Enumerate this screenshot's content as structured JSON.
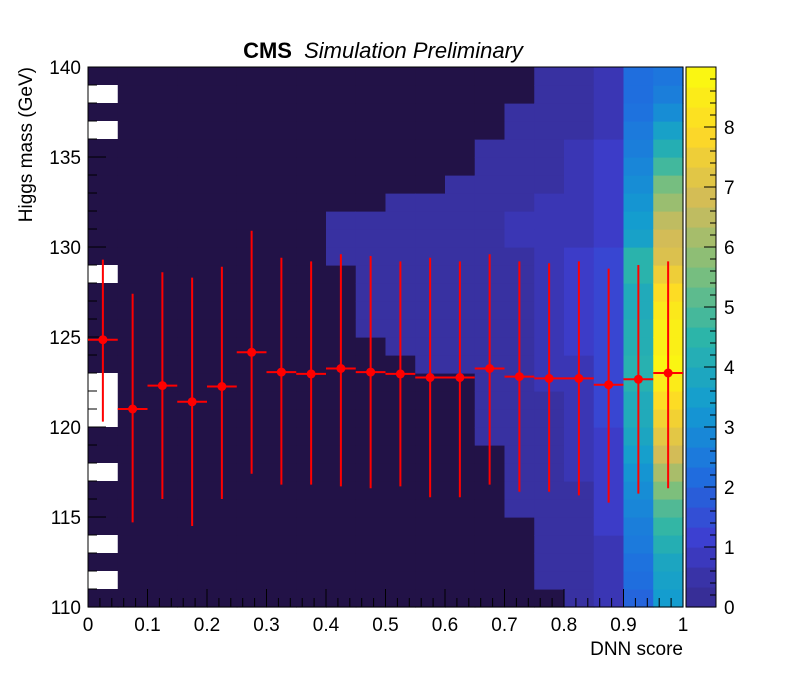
{
  "chart_data": {
    "type": "heatmap",
    "title_bold": "CMS",
    "title_italic": "Simulation Preliminary",
    "xlabel": "DNN score",
    "ylabel": "Higgs mass (GeV)",
    "xlim": [
      0,
      1
    ],
    "ylim": [
      110,
      140
    ],
    "x_ticks": [
      "0",
      "0.1",
      "0.2",
      "0.3",
      "0.4",
      "0.5",
      "0.6",
      "0.7",
      "0.8",
      "0.9",
      "1"
    ],
    "y_ticks": [
      "110",
      "115",
      "120",
      "125",
      "130",
      "135",
      "140"
    ],
    "colorbar": {
      "min": 0,
      "max": 9,
      "ticks": [
        "0",
        "1",
        "2",
        "3",
        "4",
        "5",
        "6",
        "7",
        "8"
      ]
    },
    "x_bins": 20,
    "y_bins": 30,
    "grid": false,
    "legend": "none",
    "column_profiles": [
      [
        0.1,
        0.1,
        0.1,
        0.1,
        0.1,
        0.1,
        0.1,
        0.1,
        0.1,
        0.1,
        0.1,
        0.1,
        0.1,
        0.1,
        0.1,
        0.1,
        0.1,
        0.1,
        0.1,
        0.1,
        0.1,
        0.1,
        0.1,
        0.1,
        0.1,
        0.1,
        0.1,
        0.1,
        0.1,
        0.1
      ],
      [
        0.1,
        0.1,
        0.1,
        0.1,
        0.1,
        0.1,
        0.1,
        0.1,
        0.1,
        0.1,
        0.1,
        0.1,
        0.1,
        0.1,
        0.1,
        0.1,
        0.1,
        0.1,
        0.1,
        0.1,
        0.1,
        0.1,
        0.1,
        0.1,
        0.1,
        0.1,
        0.1,
        0.1,
        0.1,
        0.1
      ],
      [
        0.1,
        0.1,
        0.1,
        0.1,
        0.1,
        0.1,
        0.1,
        0.1,
        0.1,
        0.1,
        0.1,
        0.1,
        0.1,
        0.1,
        0.1,
        0.1,
        0.1,
        0.1,
        0.1,
        0.1,
        0.1,
        0.1,
        0.1,
        0.1,
        0.1,
        0.1,
        0.1,
        0.1,
        0.1,
        0.1
      ],
      [
        0.1,
        0.1,
        0.1,
        0.1,
        0.1,
        0.1,
        0.1,
        0.1,
        0.1,
        0.1,
        0.1,
        0.1,
        0.1,
        0.1,
        0.1,
        0.1,
        0.1,
        0.1,
        0.1,
        0.1,
        0.1,
        0.1,
        0.1,
        0.1,
        0.1,
        0.1,
        0.1,
        0.1,
        0.1,
        0.1
      ],
      [
        0.1,
        0.1,
        0.1,
        0.1,
        0.1,
        0.1,
        0.1,
        0.1,
        0.1,
        0.1,
        0.1,
        0.1,
        0.1,
        0.1,
        0.1,
        0.1,
        0.1,
        0.1,
        0.1,
        0.1,
        0.1,
        0.1,
        0.1,
        0.1,
        0.1,
        0.1,
        0.1,
        0.1,
        0.1,
        0.1
      ],
      [
        0.1,
        0.1,
        0.1,
        0.1,
        0.1,
        0.1,
        0.1,
        0.1,
        0.1,
        0.1,
        0.1,
        0.1,
        0.1,
        0.1,
        0.1,
        0.1,
        0.1,
        0.1,
        0.1,
        0.1,
        0.1,
        0.1,
        0.1,
        0.1,
        0.1,
        0.1,
        0.1,
        0.1,
        0.1,
        0.1
      ],
      [
        0.1,
        0.1,
        0.1,
        0.1,
        0.1,
        0.1,
        0.1,
        0.1,
        0.1,
        0.1,
        0.1,
        0.1,
        0.1,
        0.1,
        0.1,
        0.1,
        0.1,
        0.1,
        0.1,
        0.1,
        0.1,
        0.1,
        0.1,
        0.1,
        0.1,
        0.1,
        0.1,
        0.1,
        0.1,
        0.1
      ],
      [
        0.1,
        0.1,
        0.1,
        0.1,
        0.1,
        0.1,
        0.1,
        0.1,
        0.1,
        0.1,
        0.1,
        0.1,
        0.1,
        0.1,
        0.1,
        0.1,
        0.1,
        0.1,
        0.1,
        0.1,
        0.1,
        0.1,
        0.1,
        0.1,
        0.1,
        0.1,
        0.1,
        0.1,
        0.1,
        0.1
      ],
      [
        0.1,
        0.1,
        0.1,
        0.1,
        0.1,
        0.1,
        0.1,
        0.1,
        0.1,
        0.1,
        0.1,
        0.1,
        0.1,
        0.1,
        0.1,
        0.1,
        0.1,
        0.1,
        0.1,
        0.4,
        0.4,
        0.4,
        0.1,
        0.1,
        0.1,
        0.1,
        0.1,
        0.1,
        0.1,
        0.1
      ],
      [
        0.1,
        0.1,
        0.1,
        0.1,
        0.1,
        0.1,
        0.1,
        0.1,
        0.1,
        0.1,
        0.1,
        0.1,
        0.1,
        0.1,
        0.1,
        0.4,
        0.4,
        0.4,
        0.4,
        0.4,
        0.4,
        0.4,
        0.1,
        0.1,
        0.1,
        0.1,
        0.1,
        0.1,
        0.1,
        0.1
      ],
      [
        0.1,
        0.1,
        0.1,
        0.1,
        0.1,
        0.1,
        0.1,
        0.1,
        0.1,
        0.1,
        0.1,
        0.1,
        0.1,
        0.1,
        0.4,
        0.4,
        0.4,
        0.4,
        0.4,
        0.4,
        0.4,
        0.4,
        0.4,
        0.1,
        0.1,
        0.1,
        0.1,
        0.1,
        0.1,
        0.1
      ],
      [
        0.1,
        0.1,
        0.1,
        0.1,
        0.1,
        0.1,
        0.1,
        0.1,
        0.1,
        0.1,
        0.1,
        0.1,
        0.1,
        0.4,
        0.4,
        0.4,
        0.4,
        0.4,
        0.4,
        0.4,
        0.4,
        0.4,
        0.4,
        0.1,
        0.1,
        0.1,
        0.1,
        0.1,
        0.1,
        0.1
      ],
      [
        0.1,
        0.1,
        0.1,
        0.1,
        0.1,
        0.1,
        0.1,
        0.1,
        0.1,
        0.1,
        0.1,
        0.1,
        0.1,
        0.4,
        0.4,
        0.4,
        0.4,
        0.4,
        0.4,
        0.4,
        0.4,
        0.4,
        0.4,
        0.4,
        0.1,
        0.1,
        0.1,
        0.1,
        0.1,
        0.1
      ],
      [
        0.1,
        0.1,
        0.1,
        0.1,
        0.1,
        0.1,
        0.1,
        0.1,
        0.1,
        0.4,
        0.4,
        0.4,
        0.4,
        0.4,
        0.4,
        0.4,
        0.4,
        0.4,
        0.4,
        0.4,
        0.4,
        0.4,
        0.4,
        0.4,
        0.4,
        0.4,
        0.1,
        0.1,
        0.1,
        0.1
      ],
      [
        0.1,
        0.1,
        0.1,
        0.1,
        0.1,
        0.4,
        0.4,
        0.4,
        0.4,
        0.4,
        0.4,
        0.4,
        0.4,
        0.4,
        0.4,
        0.4,
        0.4,
        0.4,
        0.4,
        0.4,
        0.7,
        0.7,
        0.4,
        0.4,
        0.4,
        0.4,
        0.4,
        0.4,
        0.1,
        0.1
      ],
      [
        0.1,
        0.4,
        0.4,
        0.4,
        0.4,
        0.4,
        0.4,
        0.4,
        0.4,
        0.4,
        0.4,
        0.4,
        0.7,
        0.7,
        0.7,
        0.7,
        0.7,
        0.7,
        0.7,
        0.7,
        0.7,
        0.7,
        0.7,
        0.4,
        0.4,
        0.4,
        0.4,
        0.4,
        0.4,
        0.4
      ],
      [
        0.4,
        0.4,
        0.4,
        0.4,
        0.4,
        0.4,
        0.4,
        0.7,
        0.7,
        0.7,
        0.7,
        0.7,
        0.7,
        0.7,
        1.0,
        1.0,
        1.0,
        1.0,
        1.0,
        1.0,
        0.7,
        0.7,
        0.7,
        0.7,
        0.7,
        0.7,
        0.4,
        0.4,
        0.4,
        0.4
      ],
      [
        0.7,
        0.7,
        0.7,
        0.7,
        1.0,
        1.0,
        1.0,
        1.0,
        1.0,
        1.0,
        1.3,
        1.3,
        1.3,
        1.3,
        1.3,
        1.3,
        1.3,
        1.3,
        1.3,
        1.3,
        1.0,
        1.0,
        1.0,
        1.0,
        1.0,
        1.0,
        0.7,
        0.7,
        0.7,
        0.7
      ],
      [
        2.0,
        2.2,
        2.3,
        2.5,
        2.6,
        2.8,
        3.0,
        3.2,
        3.5,
        3.8,
        4.0,
        4.0,
        4.3,
        4.3,
        4.2,
        4.2,
        4.0,
        4.0,
        4.4,
        4.4,
        3.6,
        3.4,
        3.2,
        3.0,
        2.8,
        2.6,
        2.5,
        2.3,
        2.2,
        2.2
      ],
      [
        3.4,
        3.6,
        3.8,
        4.2,
        4.6,
        5.0,
        5.6,
        6.2,
        6.8,
        7.2,
        7.6,
        8.0,
        8.5,
        8.8,
        8.6,
        8.6,
        8.4,
        8.0,
        7.5,
        7.0,
        6.8,
        6.5,
        6.0,
        5.5,
        4.8,
        4.2,
        3.6,
        3.0,
        2.6,
        2.4
      ]
    ],
    "empty_bins_x_lt_0_05": [
      111,
      113,
      117,
      120,
      121,
      122,
      128,
      136,
      138
    ],
    "profile": {
      "x": [
        0.025,
        0.075,
        0.125,
        0.175,
        0.225,
        0.275,
        0.325,
        0.375,
        0.425,
        0.475,
        0.525,
        0.575,
        0.625,
        0.675,
        0.725,
        0.775,
        0.825,
        0.875,
        0.925,
        0.975
      ],
      "y": [
        124.85,
        121.0,
        122.3,
        121.4,
        122.25,
        124.15,
        123.05,
        122.95,
        123.25,
        123.05,
        122.95,
        122.75,
        122.75,
        123.25,
        122.8,
        122.7,
        122.7,
        122.35,
        122.65,
        123.0
      ],
      "y_err_low": [
        120.3,
        114.7,
        116.0,
        114.5,
        116.0,
        117.4,
        116.8,
        116.8,
        116.7,
        116.6,
        116.7,
        116.1,
        116.1,
        116.8,
        116.4,
        116.4,
        116.2,
        115.8,
        116.3,
        116.6
      ],
      "y_err_high": [
        129.3,
        127.4,
        128.6,
        128.3,
        128.9,
        130.9,
        129.4,
        129.2,
        129.6,
        129.5,
        129.2,
        129.4,
        129.2,
        129.6,
        129.2,
        129.1,
        129.2,
        128.8,
        129.0,
        129.2
      ],
      "x_half_width": 0.025,
      "color": "#ff0000"
    },
    "colormap": [
      "#352a87",
      "#3d3ed0",
      "#1e70df",
      "#139cd0",
      "#2cb5a9",
      "#7fbf7b",
      "#d1bb59",
      "#fdd827",
      "#f9fb0e"
    ],
    "background_color": "#221247"
  }
}
